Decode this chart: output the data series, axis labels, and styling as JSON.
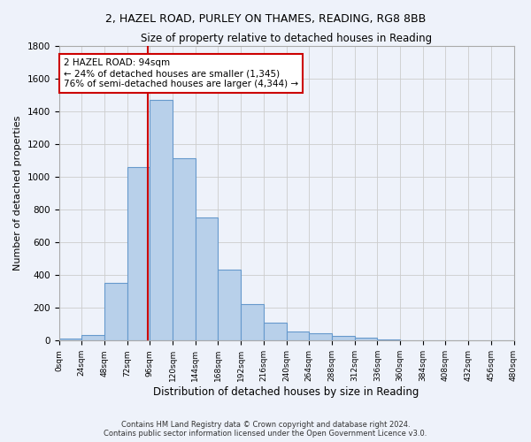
{
  "title1": "2, HAZEL ROAD, PURLEY ON THAMES, READING, RG8 8BB",
  "title2": "Size of property relative to detached houses in Reading",
  "xlabel": "Distribution of detached houses by size in Reading",
  "ylabel": "Number of detached properties",
  "bar_color": "#b8d0ea",
  "bar_edge_color": "#6699cc",
  "background_color": "#eef2fa",
  "grid_color": "#cccccc",
  "bin_edges": [
    0,
    24,
    48,
    72,
    96,
    120,
    144,
    168,
    192,
    216,
    240,
    264,
    288,
    312,
    336,
    360,
    384,
    408,
    432,
    456,
    480
  ],
  "bar_heights": [
    10,
    35,
    355,
    1060,
    1470,
    1115,
    750,
    435,
    225,
    110,
    55,
    45,
    30,
    20,
    5,
    2,
    2,
    2,
    2,
    2
  ],
  "property_size": 94,
  "vline_color": "#cc0000",
  "annotation_line1": "2 HAZEL ROAD: 94sqm",
  "annotation_line2": "← 24% of detached houses are smaller (1,345)",
  "annotation_line3": "76% of semi-detached houses are larger (4,344) →",
  "annotation_box_color": "#ffffff",
  "annotation_border_color": "#cc0000",
  "footnote": "Contains HM Land Registry data © Crown copyright and database right 2024.\nContains public sector information licensed under the Open Government Licence v3.0.",
  "ylim": [
    0,
    1800
  ],
  "xlim": [
    0,
    480
  ],
  "yticks": [
    0,
    200,
    400,
    600,
    800,
    1000,
    1200,
    1400,
    1600,
    1800
  ]
}
